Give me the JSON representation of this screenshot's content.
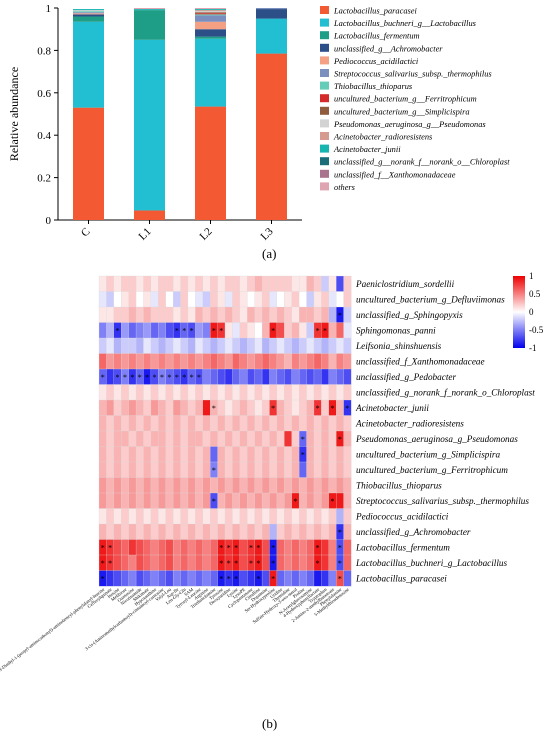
{
  "panel_labels": {
    "a": "(a)",
    "b": "(b)"
  },
  "chart_data": [
    {
      "type": "bar",
      "stacked": true,
      "ylabel": "Relative abundance",
      "ylim": [
        0,
        1
      ],
      "yticks": [
        "0",
        "0.2",
        "0.4",
        "0.6",
        "0.8",
        "1"
      ],
      "categories": [
        "C",
        "L1",
        "L2",
        "L3"
      ],
      "legend_position": "right",
      "series": [
        {
          "name": "Lactobacillus_paracasei",
          "color": "#f35a33",
          "values": [
            0.53,
            0.045,
            0.535,
            0.785
          ]
        },
        {
          "name": "Lactobacillus_buchneri_g__Lactobacillus",
          "color": "#22bed1",
          "values": [
            0.405,
            0.805,
            0.32,
            0.165
          ]
        },
        {
          "name": "Lactobacillus_fermentum",
          "color": "#1e9e86",
          "values": [
            0.025,
            0.14,
            0.01,
            0.0
          ]
        },
        {
          "name": "unclassified_g__Achromobacter",
          "color": "#2c4f87",
          "values": [
            0.01,
            0.0,
            0.035,
            0.045
          ]
        },
        {
          "name": "Pediococcus_acidilactici",
          "color": "#f4a183",
          "values": [
            0.005,
            0.0,
            0.035,
            0.0
          ]
        },
        {
          "name": "Streptococcus_salivarius_subsp._thermophilus",
          "color": "#7a8fbd",
          "values": [
            0.005,
            0.0,
            0.03,
            0.005
          ]
        },
        {
          "name": "Thiobacillus_thioparus",
          "color": "#63cdb8",
          "values": [
            0.005,
            0.0,
            0.005,
            0.0
          ]
        },
        {
          "name": "uncultured_bacterium_g__Ferritrophicum",
          "color": "#d42a2a",
          "values": [
            0.0,
            0.0,
            0.005,
            0.0
          ]
        },
        {
          "name": "uncultured_bacterium_g__Simplicispira",
          "color": "#8f5c3e",
          "values": [
            0.0,
            0.0,
            0.005,
            0.0
          ]
        },
        {
          "name": "Pseudomonas_aeruginosa_g__Pseudomonas",
          "color": "#d3d3d3",
          "values": [
            0.005,
            0.0,
            0.005,
            0.0
          ]
        },
        {
          "name": "Acinetobacter_radioresistens",
          "color": "#d59b90",
          "values": [
            0.0,
            0.0,
            0.005,
            0.0
          ]
        },
        {
          "name": "Acinetobacter_junii",
          "color": "#17b5b0",
          "values": [
            0.005,
            0.005,
            0.005,
            0.0
          ]
        },
        {
          "name": "unclassified_g__norank_f__norank_o__Chloroplast",
          "color": "#1b6d7a",
          "values": [
            0.0,
            0.0,
            0.0,
            0.0
          ]
        },
        {
          "name": "unclassified_f__Xanthomonadaceae",
          "color": "#a7738d",
          "values": [
            0.0,
            0.0,
            0.0,
            0.0
          ]
        },
        {
          "name": "others",
          "color": "#dea4b1",
          "values": [
            0.0,
            0.005,
            0.005,
            0.0
          ]
        }
      ]
    },
    {
      "type": "heatmap",
      "color_scale": {
        "min": -1,
        "max": 1,
        "ticks": [
          "1",
          "0.5",
          "0",
          "-0.5",
          "-1"
        ],
        "colors": [
          "#0000ee",
          "#ffffff",
          "#ee0000"
        ]
      },
      "rows": [
        "Paeniclostridium_sordellii",
        "uncultured_bacterium_g_Defluviimonas",
        "unclassified_g_Sphingopyxis",
        "Sphingomonas_panni",
        "Leifsonia_shinshuensis",
        "unclassified_f_Xanthomonadaceae",
        "unclassified_g_Pedobacter",
        "unclassified_g_norank_f_norank_o_Chloroplast",
        "Acinetobacter_junii",
        "Acinetobacter_radioresistens",
        "Pseudomonas_aeruginosa_g_Pseudomonas",
        "uncultured_bacterium_g_Simplicispira",
        "uncultured_bacterium_g_Ferritrophicum",
        "Thiobacillus_thioparus",
        "Streptococcus_salivarius_subsp._thermophilus",
        "Pediococcus_acidilactici",
        "unclassified_g_Achromobacter",
        "Lactobacillus_fermentum",
        "Lactobacillus_buchneri_g_Lactobacillus",
        "Lactobacillus_paracasei"
      ],
      "columns": [
        "N,N-Diethyl-1-(propyl-aminocarbonyl)-aminobenzyl-phenylalanyl-leucine",
        "Caffeoylquinate",
        "Inosine",
        "Melibiose",
        "Guanosine",
        "Nicotinamide",
        "Shikimate",
        "Hypoxanthine",
        "3-cis-(Aminomethylcarbamoyl)-cinnamoyl-carnosine",
        "Valyl-Leu",
        "Asp-Ile",
        "Leu-Gly-Gln",
        "SAM",
        "Tyrosyl-Leucine",
        "Arginine",
        "Triethanolamine",
        "Tyrosine",
        "Deoxyuridine",
        "Lysine",
        "LysoPE",
        "Cyclopentanone",
        "Citrulline",
        "Dopamine",
        "Ser-Hydroxyproline",
        "Uridine",
        "Thymidine",
        "Sulfate-Hydroxy-3-oxo-sterol",
        "Proline",
        "N-Acetylglucosamine",
        "4-Hydroxyphenyllactate",
        "Tryptophan",
        "2-Amino-2-methylbutanoate",
        "Phenylalanine",
        "5-Methylthioadenosine"
      ],
      "values": [
        [
          0.1,
          0.2,
          0.1,
          0.2,
          0.2,
          0.1,
          0.2,
          0.1,
          0.2,
          0.2,
          0.1,
          0.2,
          0.1,
          0.2,
          0.1,
          0.2,
          0.1,
          0.2,
          0.2,
          0.1,
          0.2,
          0.3,
          0.2,
          0.2,
          0.2,
          0.2,
          0.1,
          0.1,
          0.3,
          0.2,
          -0.2,
          0.1,
          -0.7,
          0.2
        ],
        [
          -0.1,
          -0.2,
          0.0,
          0.1,
          0.2,
          0.0,
          0.1,
          -0.1,
          0.2,
          0.0,
          -0.2,
          0.2,
          0.0,
          -0.1,
          -0.2,
          0.2,
          0.1,
          -0.1,
          0.2,
          0.1,
          0.0,
          0.1,
          0.2,
          -0.1,
          0.0,
          0.1,
          0.2,
          0.0,
          -0.2,
          0.1,
          0.2,
          -0.1,
          0.0,
          0.2
        ],
        [
          0.1,
          0.1,
          0.2,
          0.2,
          0.3,
          0.2,
          0.3,
          0.2,
          0.2,
          0.2,
          0.1,
          0.2,
          0.1,
          0.3,
          0.2,
          0.3,
          0.2,
          0.3,
          0.2,
          0.1,
          0.3,
          0.2,
          0.3,
          0.2,
          0.3,
          0.2,
          0.1,
          0.3,
          0.3,
          0.2,
          0.3,
          -0.3,
          -0.9,
          -0.2
        ],
        [
          -0.5,
          -0.3,
          -0.8,
          -0.4,
          -0.6,
          -0.5,
          -0.4,
          -0.6,
          -0.5,
          -0.7,
          -0.8,
          -0.6,
          -0.7,
          -0.4,
          -0.5,
          0.9,
          0.8,
          0.1,
          -0.1,
          0.2,
          0.1,
          0.0,
          0.3,
          0.9,
          0.7,
          0.2,
          0.3,
          0.1,
          -0.2,
          0.8,
          0.9,
          0.3,
          0.6,
          -0.1
        ],
        [
          -0.2,
          -0.1,
          -0.3,
          -0.2,
          -0.2,
          -0.3,
          -0.1,
          -0.2,
          -0.3,
          -0.2,
          -0.1,
          -0.2,
          -0.3,
          -0.1,
          -0.2,
          -0.3,
          -0.2,
          -0.1,
          -0.2,
          -0.3,
          -0.2,
          -0.1,
          -0.3,
          -0.2,
          -0.1,
          -0.2,
          -0.3,
          -0.2,
          -0.1,
          -0.2,
          -0.3,
          -0.2,
          -0.1,
          -0.2
        ],
        [
          0.6,
          0.4,
          0.5,
          0.4,
          0.5,
          0.4,
          0.5,
          0.4,
          0.5,
          0.4,
          0.5,
          0.4,
          0.5,
          0.4,
          0.5,
          0.6,
          0.5,
          0.4,
          0.6,
          0.5,
          0.4,
          0.5,
          0.6,
          0.5,
          0.4,
          0.3,
          0.5,
          0.4,
          0.5,
          0.6,
          0.5,
          0.3,
          0.5,
          0.4
        ],
        [
          -0.6,
          -0.8,
          -0.7,
          -0.5,
          -0.8,
          -0.6,
          -0.9,
          -0.7,
          -0.5,
          -0.6,
          -0.7,
          -0.8,
          -0.6,
          -0.7,
          -0.5,
          -0.6,
          -0.7,
          -0.8,
          -0.6,
          -0.5,
          -0.7,
          -0.6,
          -0.8,
          -0.5,
          -0.6,
          -0.7,
          -0.5,
          -0.6,
          -0.7,
          -0.6,
          -0.8,
          -0.5,
          -0.6,
          -0.7
        ],
        [
          0.1,
          0.2,
          0.1,
          0.2,
          0.1,
          0.2,
          0.1,
          0.2,
          0.1,
          0.2,
          0.1,
          0.2,
          0.1,
          0.2,
          0.1,
          0.2,
          0.1,
          0.2,
          0.1,
          0.2,
          0.1,
          0.2,
          0.1,
          0.2,
          0.1,
          0.2,
          0.1,
          0.2,
          0.1,
          0.2,
          0.1,
          0.2,
          0.1,
          0.2
        ],
        [
          0.3,
          0.4,
          0.2,
          0.3,
          0.4,
          0.3,
          0.2,
          0.4,
          0.3,
          0.2,
          0.4,
          0.3,
          0.2,
          0.3,
          0.9,
          0.3,
          0.2,
          0.1,
          0.2,
          0.3,
          0.2,
          0.1,
          0.2,
          0.8,
          0.3,
          0.2,
          0.1,
          0.2,
          0.3,
          0.8,
          0.2,
          0.9,
          0.3,
          -0.8
        ],
        [
          0.3,
          0.2,
          0.3,
          0.2,
          0.3,
          0.2,
          0.3,
          0.2,
          0.3,
          0.2,
          0.3,
          0.2,
          0.3,
          0.2,
          0.3,
          0.2,
          0.3,
          0.2,
          0.3,
          0.2,
          0.3,
          0.2,
          0.3,
          0.2,
          0.3,
          0.2,
          0.3,
          0.2,
          0.3,
          0.2,
          0.3,
          0.2,
          0.3,
          0.2
        ],
        [
          0.3,
          0.2,
          0.3,
          0.3,
          0.2,
          0.3,
          0.2,
          0.3,
          0.3,
          0.2,
          0.3,
          0.2,
          0.3,
          0.3,
          0.2,
          0.3,
          0.2,
          0.3,
          0.2,
          0.3,
          0.2,
          0.3,
          0.2,
          0.3,
          0.2,
          0.8,
          0.2,
          -0.6,
          0.3,
          0.2,
          0.3,
          0.2,
          0.9,
          0.3
        ],
        [
          0.3,
          0.2,
          0.3,
          0.2,
          0.3,
          0.2,
          0.3,
          0.2,
          0.3,
          0.2,
          0.3,
          0.2,
          0.3,
          0.2,
          0.3,
          -0.6,
          0.3,
          0.2,
          0.3,
          0.2,
          0.3,
          0.2,
          0.3,
          0.2,
          0.3,
          0.2,
          0.3,
          -0.8,
          0.3,
          0.2,
          0.3,
          0.2,
          0.3,
          0.2
        ],
        [
          0.3,
          0.2,
          0.3,
          0.2,
          0.3,
          0.2,
          0.3,
          0.2,
          0.3,
          0.2,
          0.3,
          0.2,
          0.3,
          0.2,
          0.3,
          -0.5,
          0.3,
          0.2,
          0.3,
          0.2,
          0.3,
          0.2,
          0.3,
          0.2,
          0.3,
          0.2,
          0.3,
          -0.6,
          0.3,
          0.2,
          0.3,
          0.2,
          0.3,
          0.2
        ],
        [
          0.4,
          0.3,
          0.4,
          0.3,
          0.4,
          0.3,
          0.4,
          0.3,
          0.4,
          0.3,
          0.4,
          0.3,
          0.4,
          0.3,
          0.4,
          0.3,
          0.4,
          0.3,
          0.4,
          0.3,
          0.4,
          0.3,
          0.4,
          0.3,
          0.4,
          0.3,
          0.4,
          0.3,
          0.4,
          0.3,
          0.4,
          0.3,
          0.4,
          0.3
        ],
        [
          0.4,
          0.3,
          0.4,
          0.3,
          0.4,
          0.3,
          0.4,
          0.3,
          0.4,
          0.3,
          0.4,
          0.3,
          0.4,
          0.3,
          0.4,
          -0.7,
          0.3,
          0.4,
          0.3,
          0.4,
          0.3,
          0.4,
          0.3,
          0.4,
          0.3,
          0.4,
          0.9,
          0.3,
          0.4,
          0.3,
          0.4,
          0.9,
          0.9,
          0.3
        ],
        [
          0.1,
          0.2,
          0.1,
          0.2,
          0.1,
          0.2,
          0.1,
          0.2,
          0.1,
          0.2,
          0.1,
          0.2,
          0.1,
          0.2,
          0.1,
          0.2,
          0.1,
          0.2,
          0.1,
          0.2,
          0.1,
          0.2,
          0.1,
          0.2,
          0.1,
          0.2,
          0.1,
          0.2,
          0.1,
          0.2,
          0.1,
          0.2,
          -0.3,
          0.2
        ],
        [
          0.3,
          0.2,
          0.3,
          0.2,
          0.3,
          0.2,
          0.3,
          0.2,
          0.3,
          0.2,
          0.3,
          0.2,
          0.3,
          0.2,
          0.3,
          0.2,
          0.3,
          0.2,
          0.3,
          0.2,
          0.3,
          0.2,
          0.3,
          -0.3,
          0.2,
          0.3,
          0.2,
          0.3,
          0.2,
          0.3,
          0.2,
          0.3,
          -0.8,
          0.3
        ],
        [
          0.9,
          0.8,
          0.7,
          0.6,
          0.8,
          0.7,
          0.6,
          0.5,
          0.6,
          0.7,
          0.5,
          0.6,
          0.5,
          0.6,
          0.5,
          0.6,
          0.9,
          0.8,
          0.9,
          0.7,
          0.8,
          0.9,
          0.7,
          -0.9,
          0.6,
          0.5,
          0.6,
          0.5,
          0.6,
          0.9,
          0.8,
          0.5,
          -0.7,
          0.6
        ],
        [
          0.9,
          0.8,
          0.7,
          0.6,
          0.5,
          0.7,
          0.6,
          0.5,
          0.6,
          0.7,
          0.5,
          0.6,
          0.5,
          0.6,
          0.5,
          0.6,
          0.9,
          0.8,
          0.9,
          0.7,
          0.8,
          0.9,
          0.7,
          -0.9,
          0.6,
          0.5,
          0.6,
          0.5,
          0.6,
          0.9,
          0.8,
          0.5,
          -0.7,
          0.6
        ],
        [
          -0.9,
          -0.8,
          -0.7,
          -0.6,
          -0.5,
          -0.7,
          -0.6,
          -0.5,
          -0.6,
          -0.7,
          -0.5,
          -0.6,
          -0.5,
          -0.6,
          -0.5,
          -0.6,
          -0.9,
          -0.8,
          -0.9,
          -0.7,
          -0.8,
          -0.9,
          -0.7,
          0.9,
          -0.6,
          -0.5,
          -0.6,
          -0.5,
          -0.6,
          -0.9,
          -0.8,
          -0.5,
          0.7,
          -0.6
        ]
      ],
      "significance": [
        [],
        [],
        [
          32
        ],
        [
          2,
          10,
          11,
          12,
          15,
          16,
          23,
          29,
          30
        ],
        [],
        [],
        [
          0,
          2,
          3,
          4,
          5,
          6,
          7,
          8,
          9,
          10,
          11,
          12,
          13
        ],
        [],
        [
          15,
          23,
          29,
          31,
          33
        ],
        [],
        [
          27,
          32
        ],
        [
          27
        ],
        [
          15
        ],
        [],
        [
          15,
          26,
          31
        ],
        [],
        [
          32
        ],
        [
          0,
          1,
          16,
          17,
          18,
          20,
          21,
          23,
          29,
          32
        ],
        [
          0,
          1,
          16,
          17,
          18,
          20,
          21,
          23,
          29,
          32
        ],
        [
          0,
          16,
          17,
          18,
          21,
          23,
          32
        ]
      ]
    }
  ]
}
